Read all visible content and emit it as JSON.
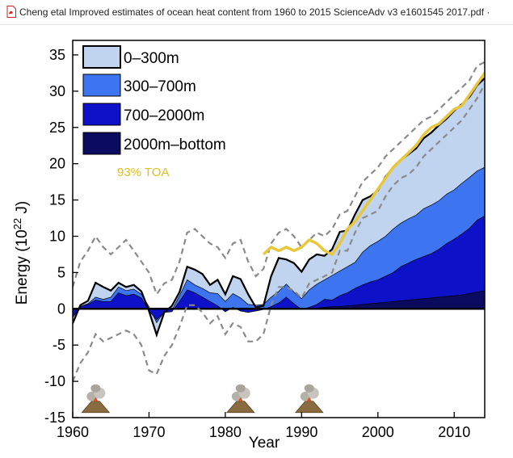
{
  "window": {
    "tab_title": "Cheng etal Improved estimates of ocean heat content from 1960 to 2015 ScienceAdv v3 e1601545 2017.pdf ·"
  },
  "icons": [
    "pdf-file-icon",
    "volcano-icon"
  ],
  "chart_data": {
    "type": "area",
    "xlabel": "Year",
    "ylabel": "Energy (10",
    "ylabel_exponent": "22",
    "ylabel_suffix": " J)",
    "xlim": [
      1960,
      2014
    ],
    "ylim": [
      -15,
      37
    ],
    "xticks": [
      1960,
      1970,
      1980,
      1990,
      2000,
      2010
    ],
    "yticks": [
      -15,
      -10,
      -5,
      0,
      5,
      10,
      15,
      20,
      25,
      30,
      35
    ],
    "grid": false,
    "legend_position": "top-left",
    "legend": [
      {
        "label": "0–300m",
        "color": "#c0d4f0"
      },
      {
        "label": "300–700m",
        "color": "#3d74f0"
      },
      {
        "label": "700–2000m",
        "color": "#0d12c8"
      },
      {
        "label": "2000m–bottom",
        "color": "#0a0a5e"
      }
    ],
    "toa_label": "93% TOA",
    "toa_color": "#e8c83a",
    "x": [
      1960,
      1961,
      1962,
      1963,
      1964,
      1965,
      1966,
      1967,
      1968,
      1969,
      1970,
      1971,
      1972,
      1973,
      1974,
      1975,
      1976,
      1977,
      1978,
      1979,
      1980,
      1981,
      1982,
      1983,
      1984,
      1985,
      1986,
      1987,
      1988,
      1989,
      1990,
      1991,
      1992,
      1993,
      1994,
      1995,
      1996,
      1997,
      1998,
      1999,
      2000,
      2001,
      2002,
      2003,
      2004,
      2005,
      2006,
      2007,
      2008,
      2009,
      2010,
      2011,
      2012,
      2013,
      2014
    ],
    "series": [
      {
        "name": "2000m–bottom",
        "values": [
          0,
          0,
          0,
          0,
          0,
          0,
          0,
          0,
          0,
          0,
          0,
          0,
          0,
          0,
          0,
          0,
          0,
          0,
          0,
          0,
          0,
          0,
          0,
          0,
          0,
          0,
          0,
          0,
          0,
          0,
          0,
          0,
          0.1,
          0.2,
          0.3,
          0.3,
          0.4,
          0.5,
          0.6,
          0.7,
          0.8,
          0.9,
          1.0,
          1.1,
          1.2,
          1.3,
          1.4,
          1.5,
          1.6,
          1.7,
          1.8,
          1.9,
          2.1,
          2.3,
          2.5
        ]
      },
      {
        "name": "700–2000m",
        "values": [
          -1.2,
          0.3,
          0.6,
          1.2,
          1.0,
          1.0,
          2.2,
          1.8,
          2.0,
          1.5,
          -0.3,
          -1.5,
          -0.5,
          -0.4,
          1.0,
          2.6,
          2.2,
          1.6,
          1.0,
          0.4,
          -0.4,
          0.2,
          -0.3,
          -0.5,
          -0.3,
          -0.1,
          0.3,
          0.8,
          1.6,
          0.7,
          -0.1,
          0.2,
          0.6,
          1.3,
          1.2,
          1.8,
          2.2,
          2.8,
          3.3,
          3.7,
          4.0,
          4.5,
          5.0,
          5.8,
          6.3,
          6.8,
          7.2,
          7.6,
          8.2,
          9.0,
          9.6,
          10.3,
          11.1,
          12.2,
          12.8
        ]
      },
      {
        "name": "300–700m",
        "values": [
          -1.2,
          0.3,
          0.7,
          1.6,
          1.3,
          1.6,
          3.0,
          2.5,
          2.7,
          2.0,
          0.3,
          -1.9,
          -0.4,
          -0.2,
          1.8,
          4.0,
          3.3,
          2.8,
          2.2,
          2.1,
          1.0,
          2.1,
          1.5,
          0.6,
          0.5,
          0.6,
          1.6,
          2.4,
          3.4,
          2.3,
          1.4,
          2.6,
          3.4,
          4.0,
          4.6,
          5.2,
          5.8,
          6.4,
          7.8,
          8.7,
          9.3,
          10.0,
          11.0,
          11.8,
          12.4,
          12.9,
          13.8,
          14.3,
          14.9,
          15.8,
          16.4,
          17.3,
          18.1,
          19.0,
          19.5
        ]
      },
      {
        "name": "0–300m",
        "values": [
          -2.0,
          0.5,
          1.1,
          3.6,
          3.0,
          2.5,
          3.6,
          3.0,
          3.3,
          2.4,
          -0.3,
          -3.6,
          -0.5,
          0.4,
          2.3,
          5.8,
          5.4,
          4.8,
          3.3,
          4.0,
          2.0,
          4.5,
          4.1,
          2.0,
          0.2,
          0.4,
          4.5,
          7.0,
          6.8,
          6.3,
          5.1,
          6.8,
          7.5,
          7.3,
          8.2,
          10.6,
          10.8,
          13.0,
          15.0,
          15.5,
          16.3,
          18.2,
          19.5,
          20.5,
          21.3,
          22.1,
          23.5,
          24.3,
          25.3,
          26.2,
          27.3,
          28.2,
          29.2,
          30.8,
          31.8
        ]
      },
      {
        "name": "upper-bound",
        "values": [
          3.0,
          6.5,
          8.0,
          10.0,
          8.5,
          7.5,
          8.5,
          9.5,
          8.0,
          6.5,
          5.0,
          2.0,
          3.5,
          4.0,
          6.5,
          10.5,
          11.0,
          10.0,
          9.0,
          8.5,
          7.0,
          9.0,
          9.5,
          6.5,
          4.5,
          5.5,
          9.0,
          10.5,
          11.0,
          10.0,
          8.5,
          9.5,
          10.5,
          10.0,
          11.0,
          13.0,
          13.5,
          15.5,
          17.5,
          18.5,
          19.5,
          21.0,
          22.0,
          23.0,
          24.0,
          25.0,
          26.0,
          26.5,
          27.5,
          28.5,
          29.5,
          30.5,
          31.5,
          33.5,
          34.0
        ]
      },
      {
        "name": "lower-bound",
        "values": [
          -10.0,
          -7.5,
          -6.0,
          -3.5,
          -4.5,
          -4.0,
          -3.5,
          -3.0,
          -3.5,
          -5.0,
          -8.5,
          -9.0,
          -6.5,
          -5.0,
          -2.5,
          0.5,
          0.5,
          -0.5,
          -2.0,
          -1.0,
          -3.5,
          -2.0,
          -2.5,
          -4.5,
          -4.5,
          -3.5,
          0.5,
          3.0,
          3.0,
          2.5,
          1.5,
          3.5,
          4.0,
          4.5,
          5.0,
          8.0,
          8.0,
          10.5,
          12.5,
          13.0,
          13.5,
          15.5,
          17.0,
          18.0,
          18.5,
          19.5,
          21.0,
          22.0,
          23.0,
          24.0,
          25.0,
          26.0,
          27.5,
          29.0,
          31.0
        ]
      }
    ],
    "toa": {
      "x": [
        1985,
        1986,
        1987,
        1988,
        1989,
        1990,
        1991,
        1992,
        1993,
        1994,
        1995,
        1996,
        1997,
        1998,
        1999,
        2000,
        2001,
        2002,
        2003,
        2004,
        2005,
        2006,
        2007,
        2008,
        2009,
        2010,
        2011,
        2012,
        2013,
        2014
      ],
      "values": [
        7.5,
        8.5,
        8.0,
        8.5,
        8.0,
        8.5,
        9.5,
        9.0,
        8.0,
        7.5,
        9.0,
        11.0,
        12.0,
        13.5,
        15.0,
        16.5,
        18.0,
        19.5,
        20.5,
        21.5,
        22.5,
        24.0,
        25.0,
        25.5,
        26.5,
        27.5,
        28.0,
        29.5,
        31.0,
        32.5
      ]
    },
    "volcano_years": [
      1963,
      1982,
      1991
    ]
  }
}
